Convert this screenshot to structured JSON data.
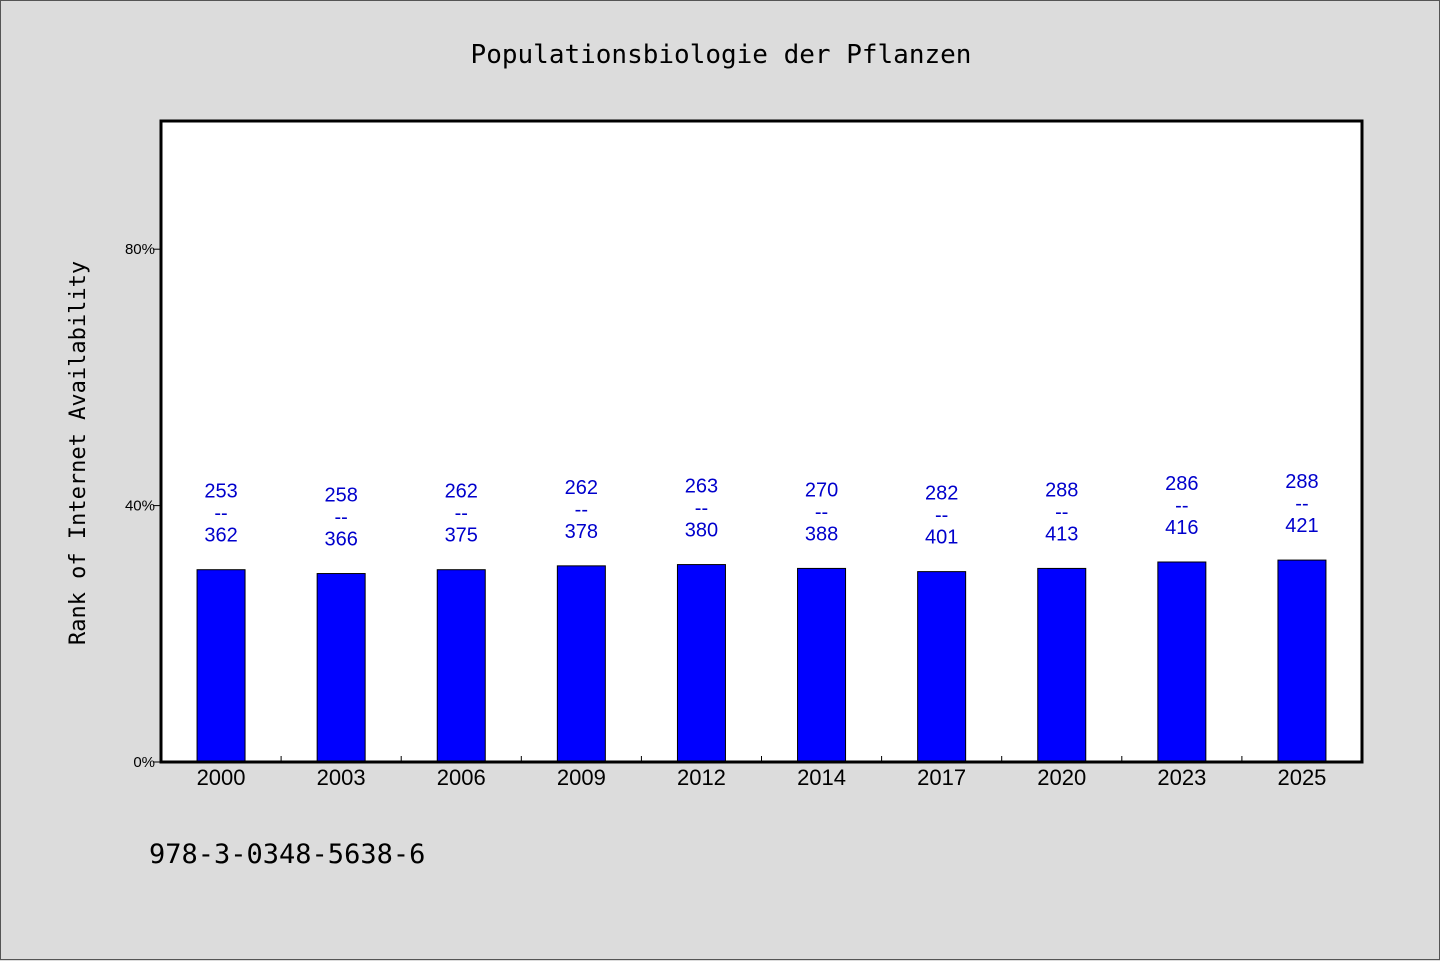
{
  "chart_data": {
    "type": "bar",
    "title": "Populationsbiologie der Pflanzen",
    "xlabel": "",
    "ylabel": "Rank of Internet Availability",
    "categories": [
      "2000",
      "2003",
      "2006",
      "2009",
      "2012",
      "2014",
      "2017",
      "2020",
      "2023",
      "2025"
    ],
    "series": [
      {
        "values": [
          30.0,
          29.4,
          30.0,
          30.6,
          30.8,
          30.2,
          29.7,
          30.2,
          31.2,
          31.5
        ],
        "color": "#0000ff"
      }
    ],
    "labels_top": [
      "253",
      "258",
      "262",
      "262",
      "263",
      "270",
      "282",
      "288",
      "286",
      "288"
    ],
    "labels_bottom": [
      "362",
      "366",
      "375",
      "378",
      "380",
      "388",
      "401",
      "413",
      "416",
      "421"
    ],
    "label_separator": "--",
    "ylim": [
      0,
      100
    ],
    "yticks": [
      0,
      40,
      80
    ],
    "ytick_labels": [
      "0%",
      "40%",
      "80%"
    ],
    "grid": false,
    "label_color": "#0000cc"
  },
  "footer": {
    "isbn": "978-3-0348-5638-6"
  }
}
